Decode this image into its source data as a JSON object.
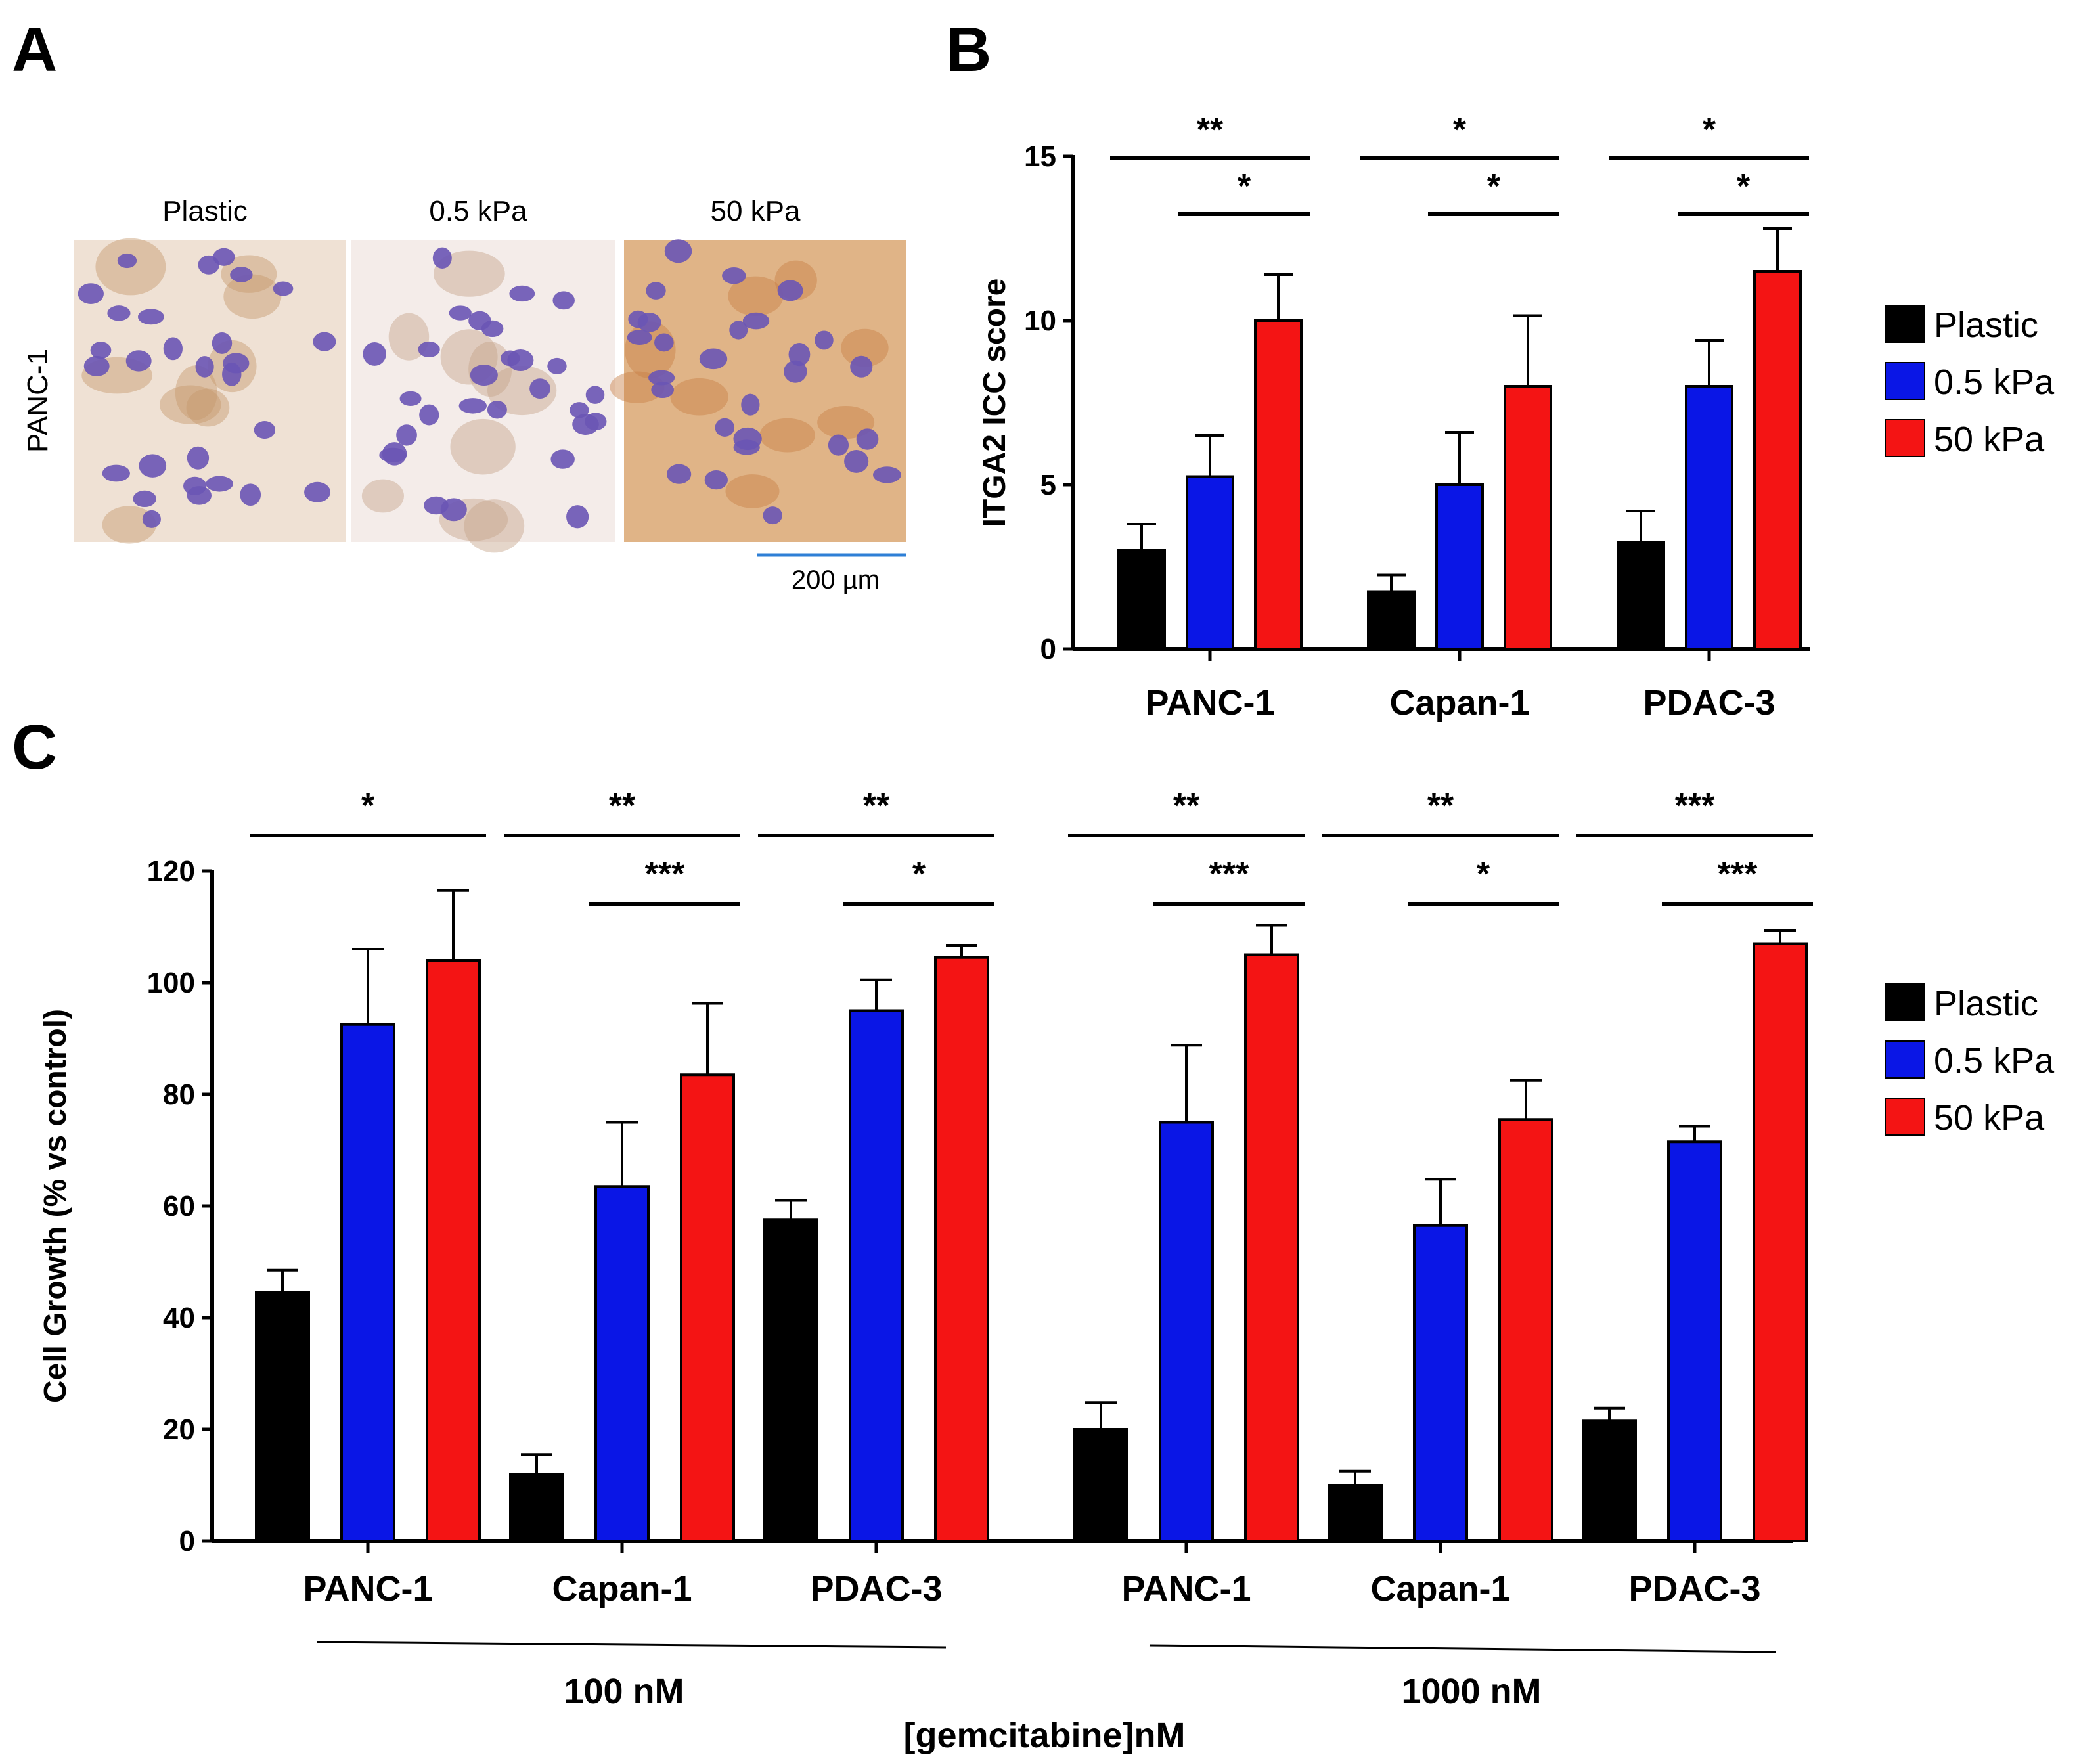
{
  "panel_a": {
    "letter": "A",
    "row_label": "PANC-1",
    "images": [
      {
        "label": "Plastic",
        "tint": "#efe1d4",
        "stain": "#c69a6c"
      },
      {
        "label": "0.5 kPa",
        "tint": "#f4ece9",
        "stain": "#c6a48a"
      },
      {
        "label": "50 kPa",
        "tint": "#e0b487",
        "stain": "#c77f45"
      }
    ],
    "nucleus_color": "#6a55b5",
    "scale_bar": "200 µm",
    "scale_color": "#2e7fd6"
  },
  "panel_b": {
    "letter": "B",
    "legend": [
      "Plastic",
      "0.5 kPa",
      "50 kPa"
    ]
  },
  "panel_c": {
    "letter": "C",
    "legend": [
      "Plastic",
      "0.5 kPa",
      "50 kPa"
    ],
    "group_labels": [
      "100 nM",
      "1000 nM"
    ],
    "xlabel_main": "[gemcitabine]nM"
  },
  "colors": {
    "plastic": "#000000",
    "soft": "#0a16e6",
    "stiff": "#f41414"
  },
  "chart_data": [
    {
      "type": "bar",
      "panel": "B",
      "title": "",
      "xlabel": "",
      "ylabel": "ITGA2 ICC score",
      "ylim": [
        0,
        15
      ],
      "yticks": [
        0,
        5,
        10,
        15
      ],
      "categories": [
        "PANC-1",
        "Capan-1",
        "PDAC-3"
      ],
      "series": [
        {
          "name": "Plastic",
          "values": [
            3.0,
            1.75,
            3.25
          ],
          "errors": [
            0.8,
            0.5,
            0.95
          ]
        },
        {
          "name": "0.5 kPa",
          "values": [
            5.25,
            5.0,
            8.0
          ],
          "errors": [
            1.25,
            1.6,
            1.4
          ]
        },
        {
          "name": "50 kPa",
          "values": [
            10.0,
            8.0,
            11.5
          ],
          "errors": [
            1.4,
            2.15,
            1.3
          ]
        }
      ],
      "significance": [
        {
          "category": 0,
          "from": "Plastic",
          "to": "50 kPa",
          "label": "**"
        },
        {
          "category": 0,
          "from": "0.5 kPa",
          "to": "50 kPa",
          "label": "*"
        },
        {
          "category": 1,
          "from": "Plastic",
          "to": "50 kPa",
          "label": "*"
        },
        {
          "category": 1,
          "from": "0.5 kPa",
          "to": "50 kPa",
          "label": "*"
        },
        {
          "category": 2,
          "from": "Plastic",
          "to": "50 kPa",
          "label": "*"
        },
        {
          "category": 2,
          "from": "0.5 kPa",
          "to": "50 kPa",
          "label": "*"
        }
      ]
    },
    {
      "type": "bar",
      "panel": "C",
      "title": "",
      "xlabel": "[gemcitabine]nM",
      "ylabel": "Cell Growth (%   vs control)",
      "ylim": [
        0,
        120
      ],
      "yticks": [
        0,
        20,
        40,
        60,
        80,
        100,
        120
      ],
      "categories": [
        "PANC-1",
        "Capan-1",
        "PDAC-3",
        "PANC-1",
        "Capan-1",
        "PDAC-3"
      ],
      "groups": [
        {
          "label": "100 nM",
          "categories": [
            0,
            1,
            2
          ]
        },
        {
          "label": "1000 nM",
          "categories": [
            3,
            4,
            5
          ]
        }
      ],
      "series": [
        {
          "name": "Plastic",
          "values": [
            44.5,
            12,
            57.5,
            20,
            10,
            21.5
          ],
          "errors": [
            4,
            3.5,
            3.5,
            4.8,
            2.5,
            2.3
          ]
        },
        {
          "name": "0.5 kPa",
          "values": [
            92.5,
            63.5,
            95,
            75,
            56.5,
            71.5
          ],
          "errors": [
            13.5,
            11.5,
            5.5,
            13.8,
            8.3,
            2.8
          ]
        },
        {
          "name": "50 kPa",
          "values": [
            104,
            83.5,
            104.5,
            105,
            75.5,
            107
          ],
          "errors": [
            12.5,
            12.8,
            2.2,
            5.3,
            7,
            2.3
          ]
        }
      ],
      "significance": [
        {
          "category": 0,
          "from": "Plastic",
          "to": "50 kPa",
          "label": "*"
        },
        {
          "category": 1,
          "from": "Plastic",
          "to": "50 kPa",
          "label": "**"
        },
        {
          "category": 1,
          "from": "0.5 kPa",
          "to": "50 kPa",
          "label": "***"
        },
        {
          "category": 2,
          "from": "Plastic",
          "to": "50 kPa",
          "label": "**"
        },
        {
          "category": 2,
          "from": "0.5 kPa",
          "to": "50 kPa",
          "label": "*"
        },
        {
          "category": 3,
          "from": "Plastic",
          "to": "50 kPa",
          "label": "**"
        },
        {
          "category": 3,
          "from": "0.5 kPa",
          "to": "50 kPa",
          "label": "***"
        },
        {
          "category": 4,
          "from": "Plastic",
          "to": "50 kPa",
          "label": "**"
        },
        {
          "category": 4,
          "from": "0.5 kPa",
          "to": "50 kPa",
          "label": "*"
        },
        {
          "category": 5,
          "from": "Plastic",
          "to": "50 kPa",
          "label": "***"
        },
        {
          "category": 5,
          "from": "0.5 kPa",
          "to": "50 kPa",
          "label": "***"
        }
      ]
    }
  ]
}
